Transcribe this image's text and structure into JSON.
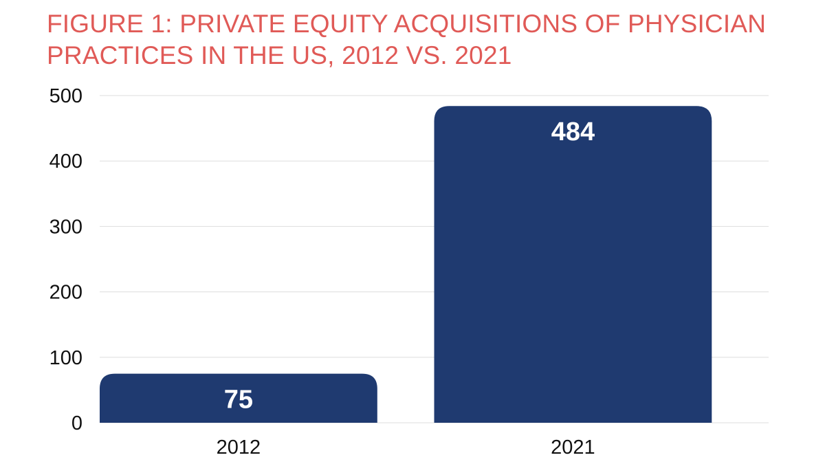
{
  "chart_data": {
    "type": "bar",
    "title": "FIGURE 1: PRIVATE EQUITY ACQUISITIONS OF PHYSICIAN\nPRACTICES IN THE US, 2012 VS. 2021",
    "categories": [
      "2012",
      "2021"
    ],
    "values": [
      75,
      484
    ],
    "data_labels": [
      "75",
      "484"
    ],
    "xlabel": "",
    "ylabel": "",
    "ylim": [
      0,
      500
    ],
    "yticks": [
      0,
      100,
      200,
      300,
      400,
      500
    ],
    "ytick_labels": [
      "0",
      "100",
      "200",
      "300",
      "400",
      "500"
    ],
    "grid": true,
    "legend": "none"
  },
  "colors": {
    "title": "#e05a57",
    "bar": "#1f3a70",
    "gridline": "#dddddd",
    "data_label": "#ffffff",
    "tick_label": "#111111"
  }
}
